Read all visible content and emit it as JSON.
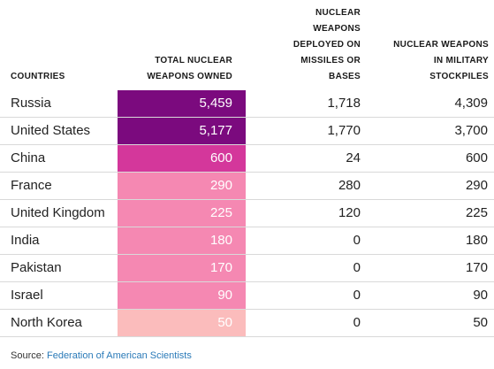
{
  "chart_data": {
    "type": "table",
    "columns": [
      "COUNTRIES",
      "TOTAL NUCLEAR\nWEAPONS OWNED",
      "NUCLEAR\nWEAPONS\nDEPLOYED ON\nMISSILES OR\nBASES",
      "NUCLEAR WEAPONS\nIN MILITARY\nSTOCKPILES"
    ],
    "rows": [
      {
        "country": "Russia",
        "total": "5,459",
        "deployed": "1,718",
        "stockpile": "4,309",
        "total_value": 5459,
        "color": "#7b0a7e"
      },
      {
        "country": "United States",
        "total": "5,177",
        "deployed": "1,770",
        "stockpile": "3,700",
        "total_value": 5177,
        "color": "#7b0a7e"
      },
      {
        "country": "China",
        "total": "600",
        "deployed": "24",
        "stockpile": "600",
        "total_value": 600,
        "color": "#d4379b"
      },
      {
        "country": "France",
        "total": "290",
        "deployed": "280",
        "stockpile": "290",
        "total_value": 290,
        "color": "#f588b2"
      },
      {
        "country": "United Kingdom",
        "total": "225",
        "deployed": "120",
        "stockpile": "225",
        "total_value": 225,
        "color": "#f588b2"
      },
      {
        "country": "India",
        "total": "180",
        "deployed": "0",
        "stockpile": "180",
        "total_value": 180,
        "color": "#f588b2"
      },
      {
        "country": "Pakistan",
        "total": "170",
        "deployed": "0",
        "stockpile": "170",
        "total_value": 170,
        "color": "#f588b2"
      },
      {
        "country": "Israel",
        "total": "90",
        "deployed": "0",
        "stockpile": "90",
        "total_value": 90,
        "color": "#f588b2"
      },
      {
        "country": "North Korea",
        "total": "50",
        "deployed": "0",
        "stockpile": "50",
        "total_value": 50,
        "color": "#fbbcbc"
      }
    ]
  },
  "source": {
    "label": "Source:",
    "link_text": "Federation of American Scientists"
  }
}
